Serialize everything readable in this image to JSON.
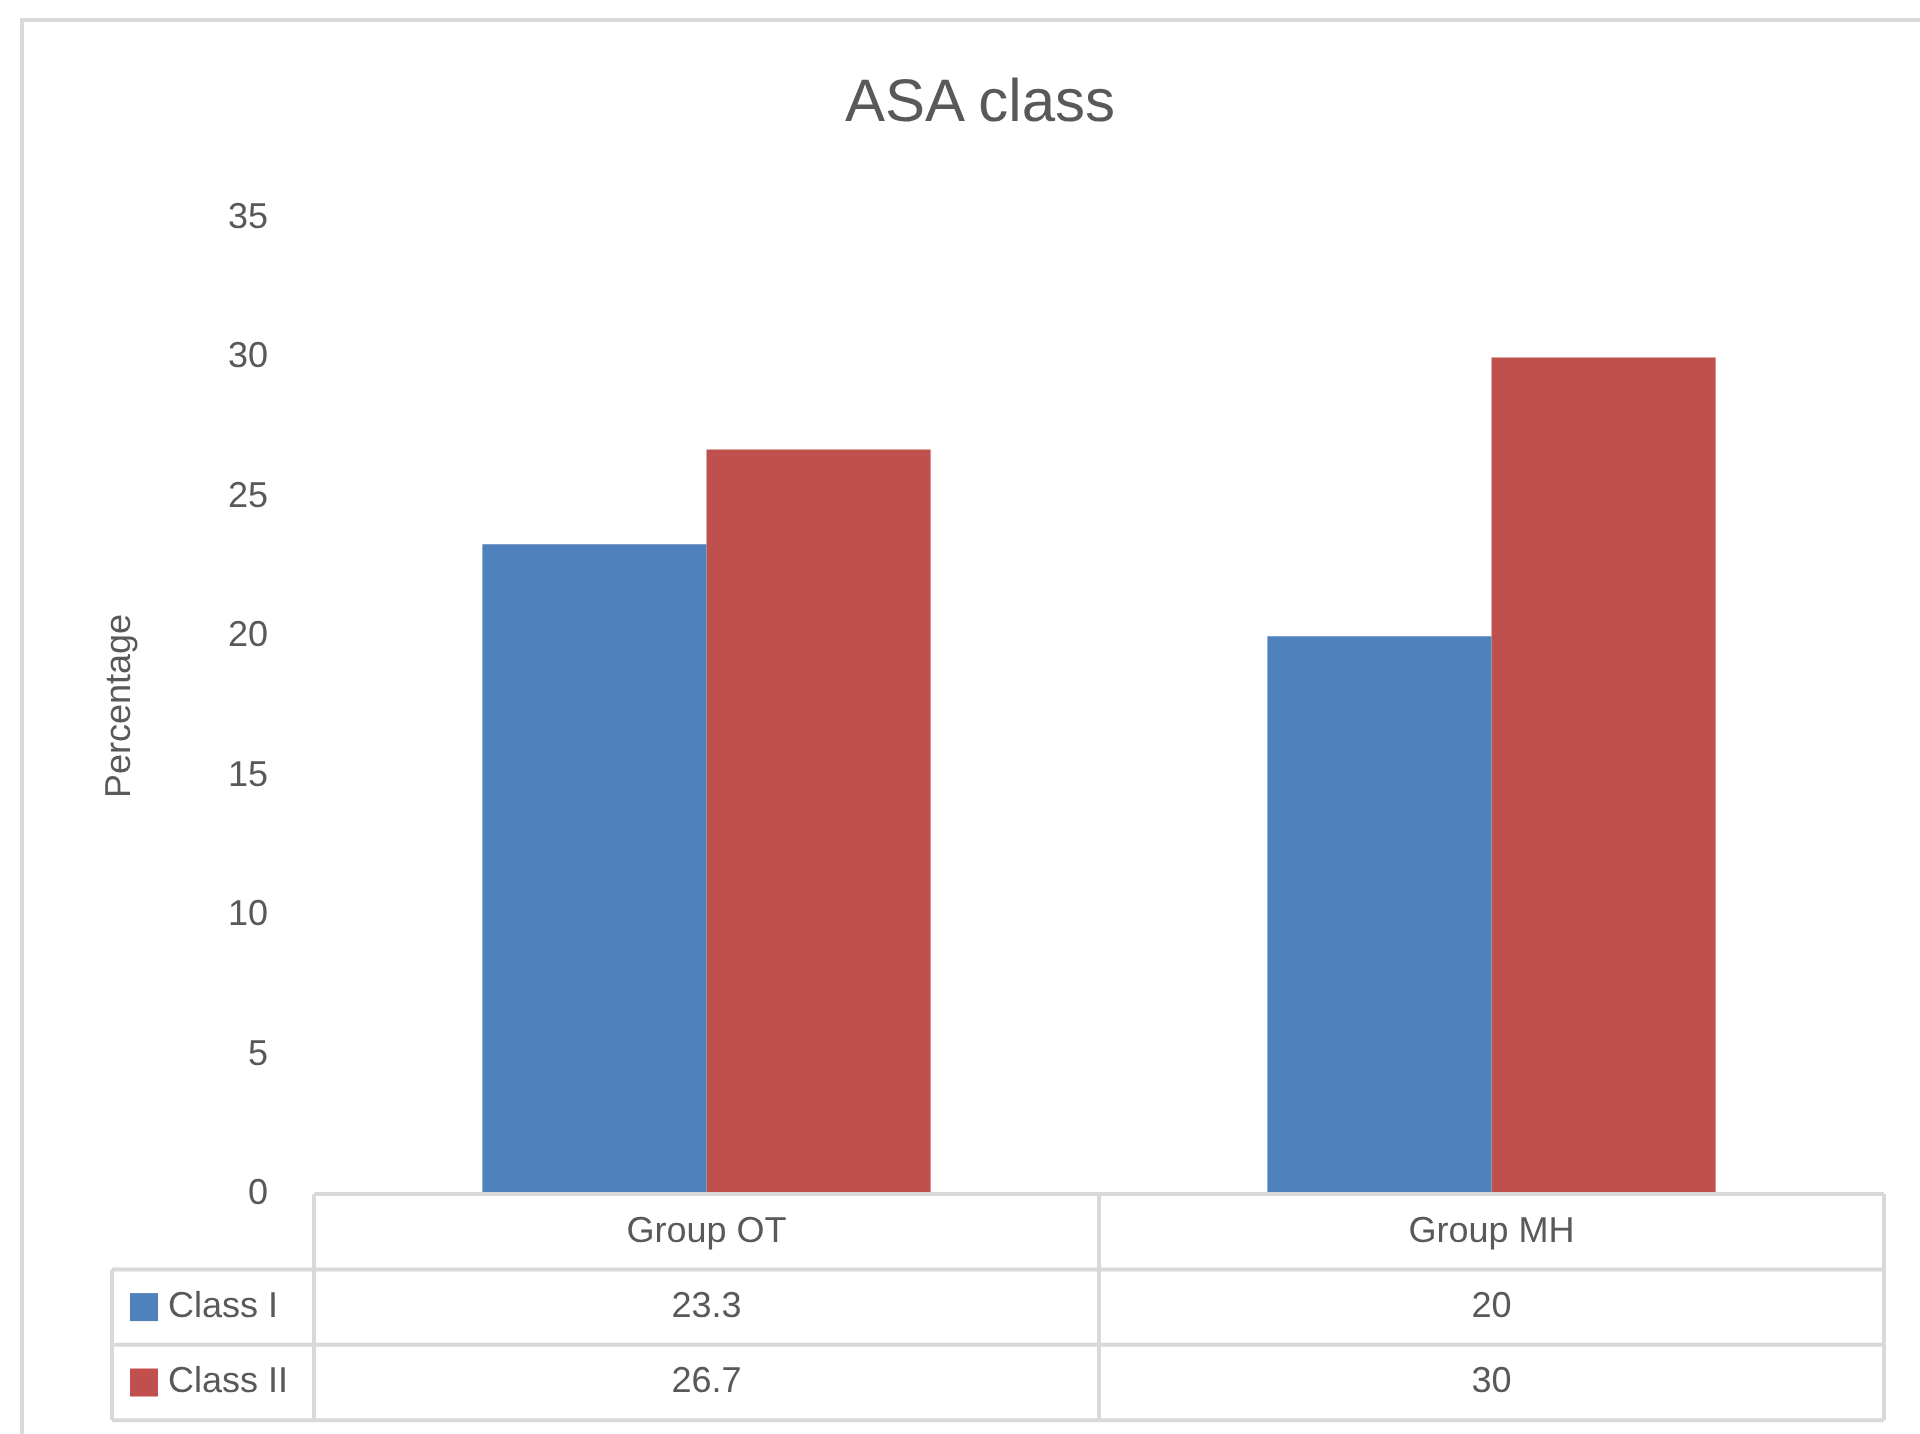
{
  "chart_data": {
    "type": "bar",
    "title": "ASA class",
    "ylabel": "Percentage",
    "categories": [
      "Group OT",
      "Group MH"
    ],
    "series": [
      {
        "name": "Class I",
        "color": "#4f81bd",
        "values": [
          23.3,
          20
        ]
      },
      {
        "name": "Class II",
        "color": "#c0504d",
        "values": [
          26.7,
          30
        ]
      }
    ],
    "ylim": [
      0,
      35
    ],
    "yticks": [
      0,
      5,
      10,
      15,
      20,
      25,
      30,
      35
    ],
    "legend": "bottom",
    "data_labels": true
  }
}
